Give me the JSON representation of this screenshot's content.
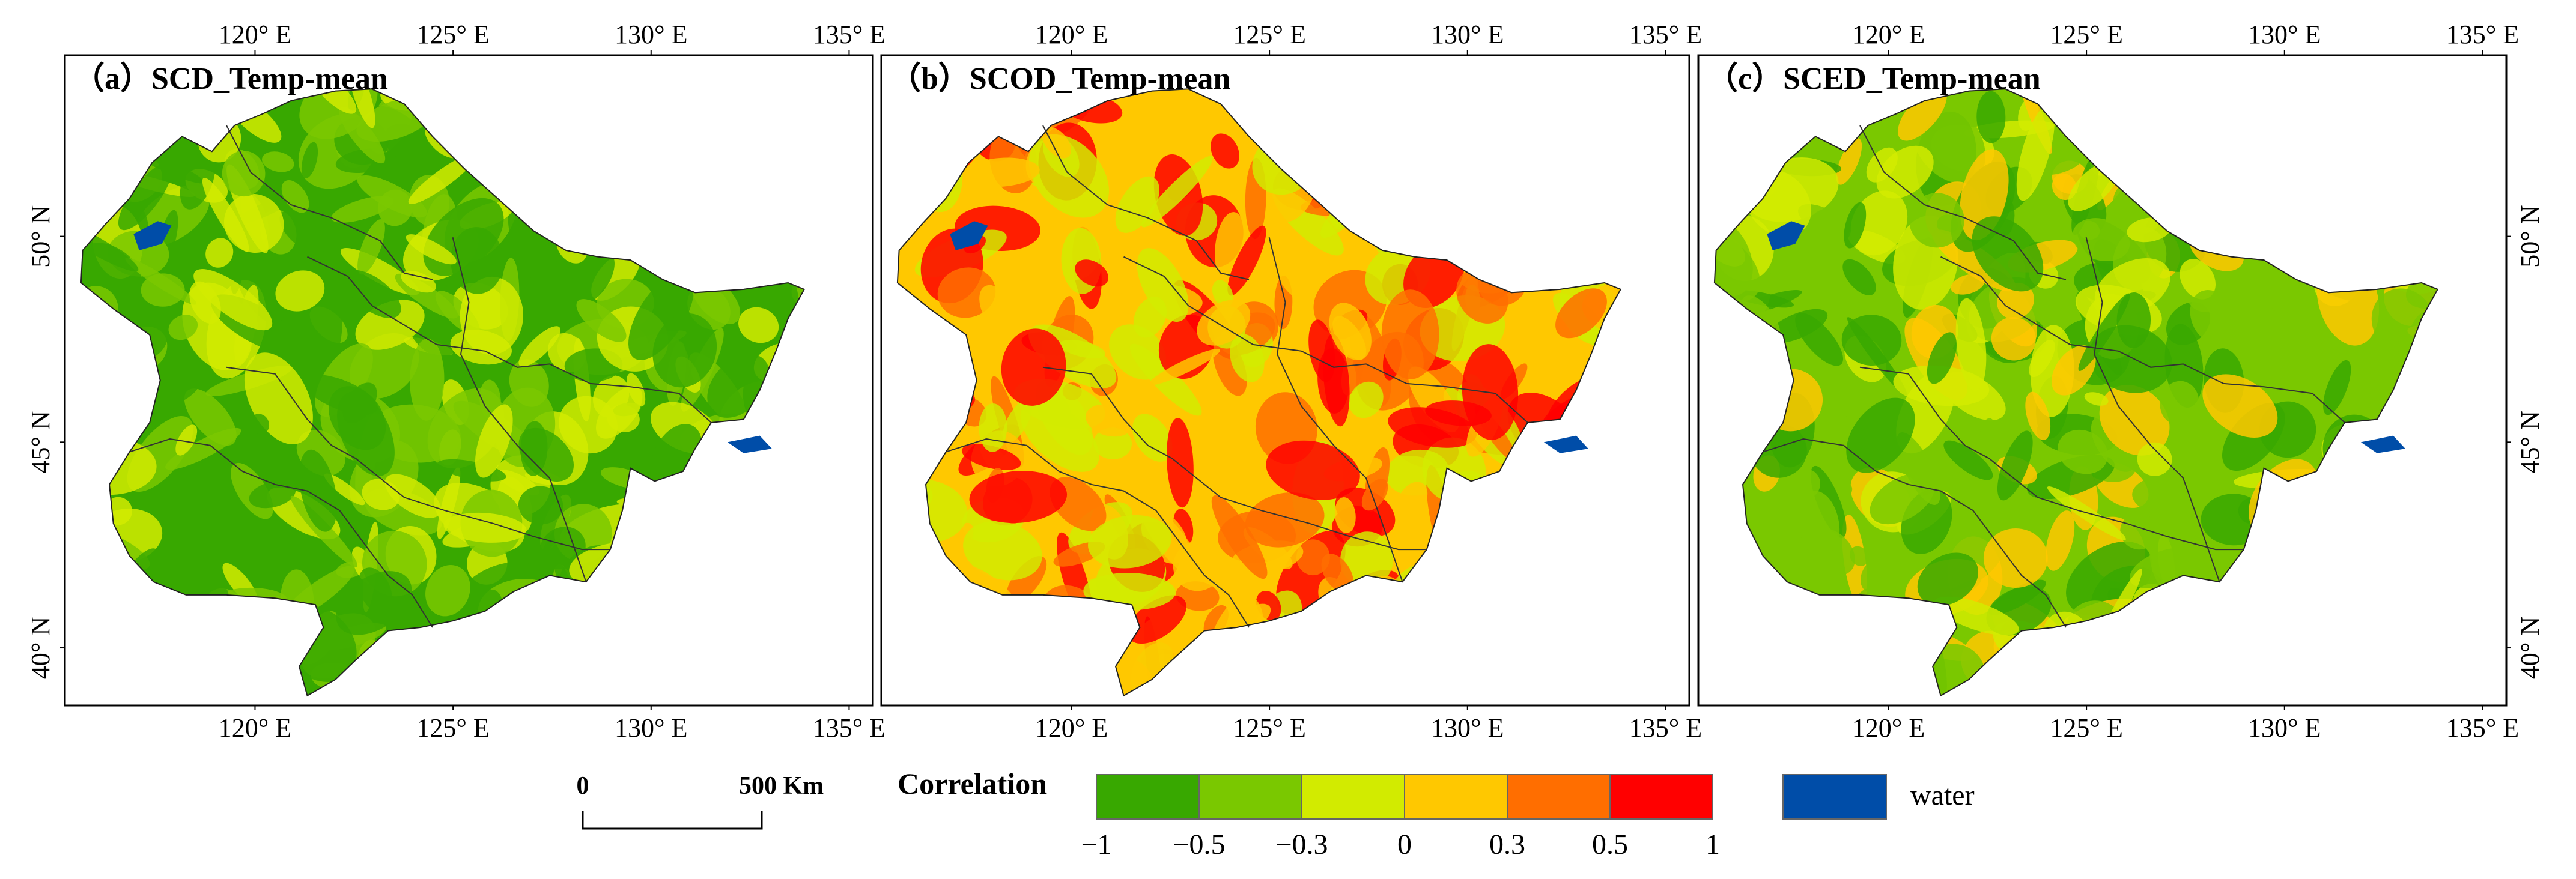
{
  "figure": {
    "panels": [
      {
        "id": "a",
        "title": "（a）SCD_Temp-mean",
        "dominant_class": "-1 to -0.5",
        "class_mix": [
          "-1 to -0.5",
          "-0.5 to -0.3",
          "-0.3 to 0"
        ]
      },
      {
        "id": "b",
        "title": "（b）SCOD_Temp-mean",
        "dominant_class": "0 to 0.3",
        "class_mix": [
          "-0.3 to 0",
          "0 to 0.3",
          "0.3 to 0.5",
          "0.5 to 1"
        ]
      },
      {
        "id": "c",
        "title": "（c）SCED_Temp-mean",
        "dominant_class": "-0.5 to -0.3",
        "class_mix": [
          "-1 to -0.5",
          "-0.5 to -0.3",
          "-0.3 to 0",
          "0 to 0.3"
        ]
      }
    ],
    "x_ticks": [
      {
        "value": 120,
        "label": "120° E"
      },
      {
        "value": 125,
        "label": "125° E"
      },
      {
        "value": 130,
        "label": "130° E"
      },
      {
        "value": 135,
        "label": "135° E"
      }
    ],
    "y_ticks": [
      {
        "value": 50,
        "label": "50° N"
      },
      {
        "value": 45,
        "label": "45° N"
      },
      {
        "value": 40,
        "label": "40° N"
      }
    ],
    "lon_range": [
      115.2,
      135.6
    ],
    "lat_range": [
      38.6,
      54.4
    ]
  },
  "legend": {
    "scale_bar": {
      "start_label": "0",
      "end_label": "500 Km"
    },
    "correlation_title": "Correlation",
    "classes": [
      {
        "label": "-1 to -0.5",
        "color": "#38a800"
      },
      {
        "label": "-0.5 to -0.3",
        "color": "#7ac800"
      },
      {
        "label": "-0.3 to 0",
        "color": "#d2eb00"
      },
      {
        "label": "0 to 0.3",
        "color": "#ffc800"
      },
      {
        "label": "0.3 to 0.5",
        "color": "#ff6e00"
      },
      {
        "label": "0.5 to 1",
        "color": "#ff0000"
      }
    ],
    "breaks": [
      "−1",
      "−0.5",
      "−0.3",
      "0",
      "0.3",
      "0.5",
      "1"
    ],
    "water": {
      "label": "water",
      "color": "#004da8"
    }
  }
}
